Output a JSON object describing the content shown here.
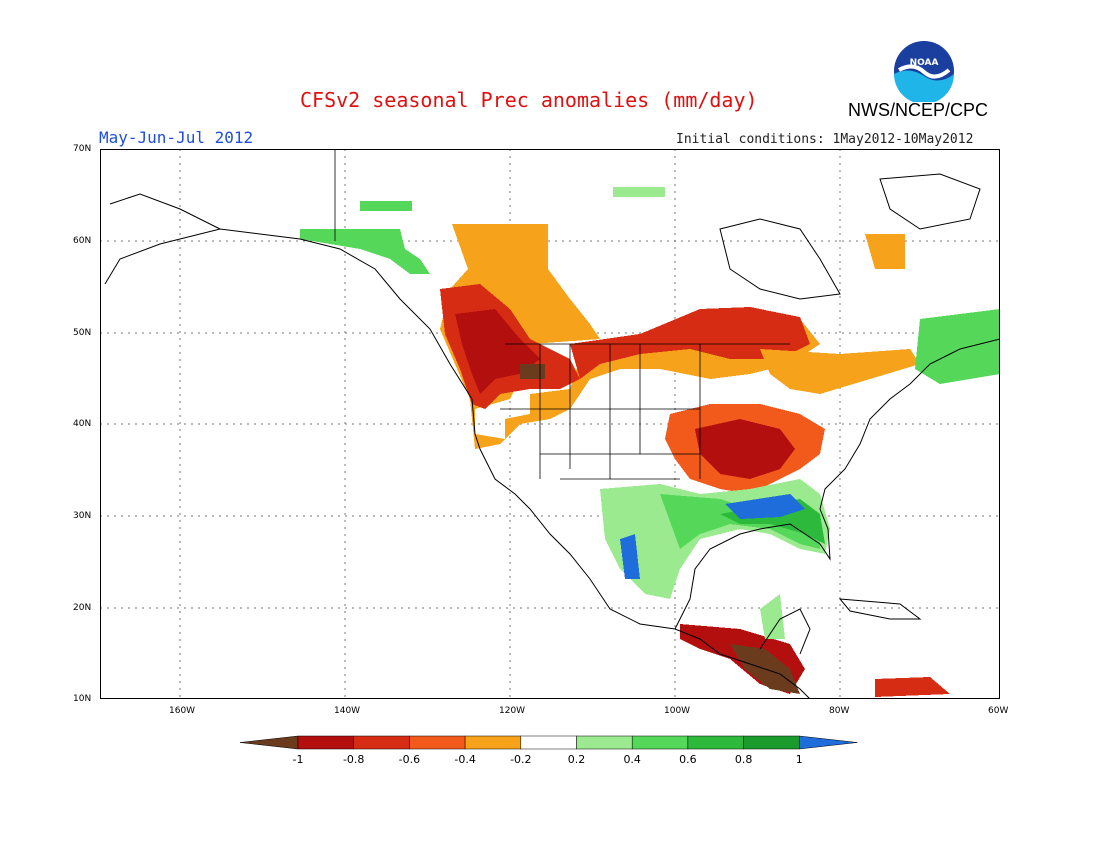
{
  "header": {
    "title": "CFSv2 seasonal Prec anomalies (mm/day)",
    "period": "May-Jun-Jul 2012",
    "initial_conditions": "Initial conditions: 1May2012-10May2012",
    "agency": "NWS/NCEP/CPC",
    "logo_text": "NOAA"
  },
  "map": {
    "lat_labels": [
      "70N",
      "60N",
      "50N",
      "40N",
      "30N",
      "20N",
      "10N"
    ],
    "lon_labels": [
      "160W",
      "140W",
      "120W",
      "100W",
      "80W",
      "60W"
    ],
    "extent": {
      "lon": [
        -172,
        -60
      ],
      "lat": [
        10,
        70
      ]
    }
  },
  "legend": {
    "tick_labels": [
      "-1",
      "-0.8",
      "-0.6",
      "-0.4",
      "-0.2",
      "0.2",
      "0.4",
      "0.6",
      "0.8",
      "1"
    ],
    "colors": [
      "#6b3b1e",
      "#b40f0f",
      "#d62c14",
      "#f25a1c",
      "#f7a21b",
      "#ffffff",
      "#9bea8f",
      "#55d85a",
      "#2db93b",
      "#1a9b2b",
      "#1f6ddb"
    ]
  }
}
